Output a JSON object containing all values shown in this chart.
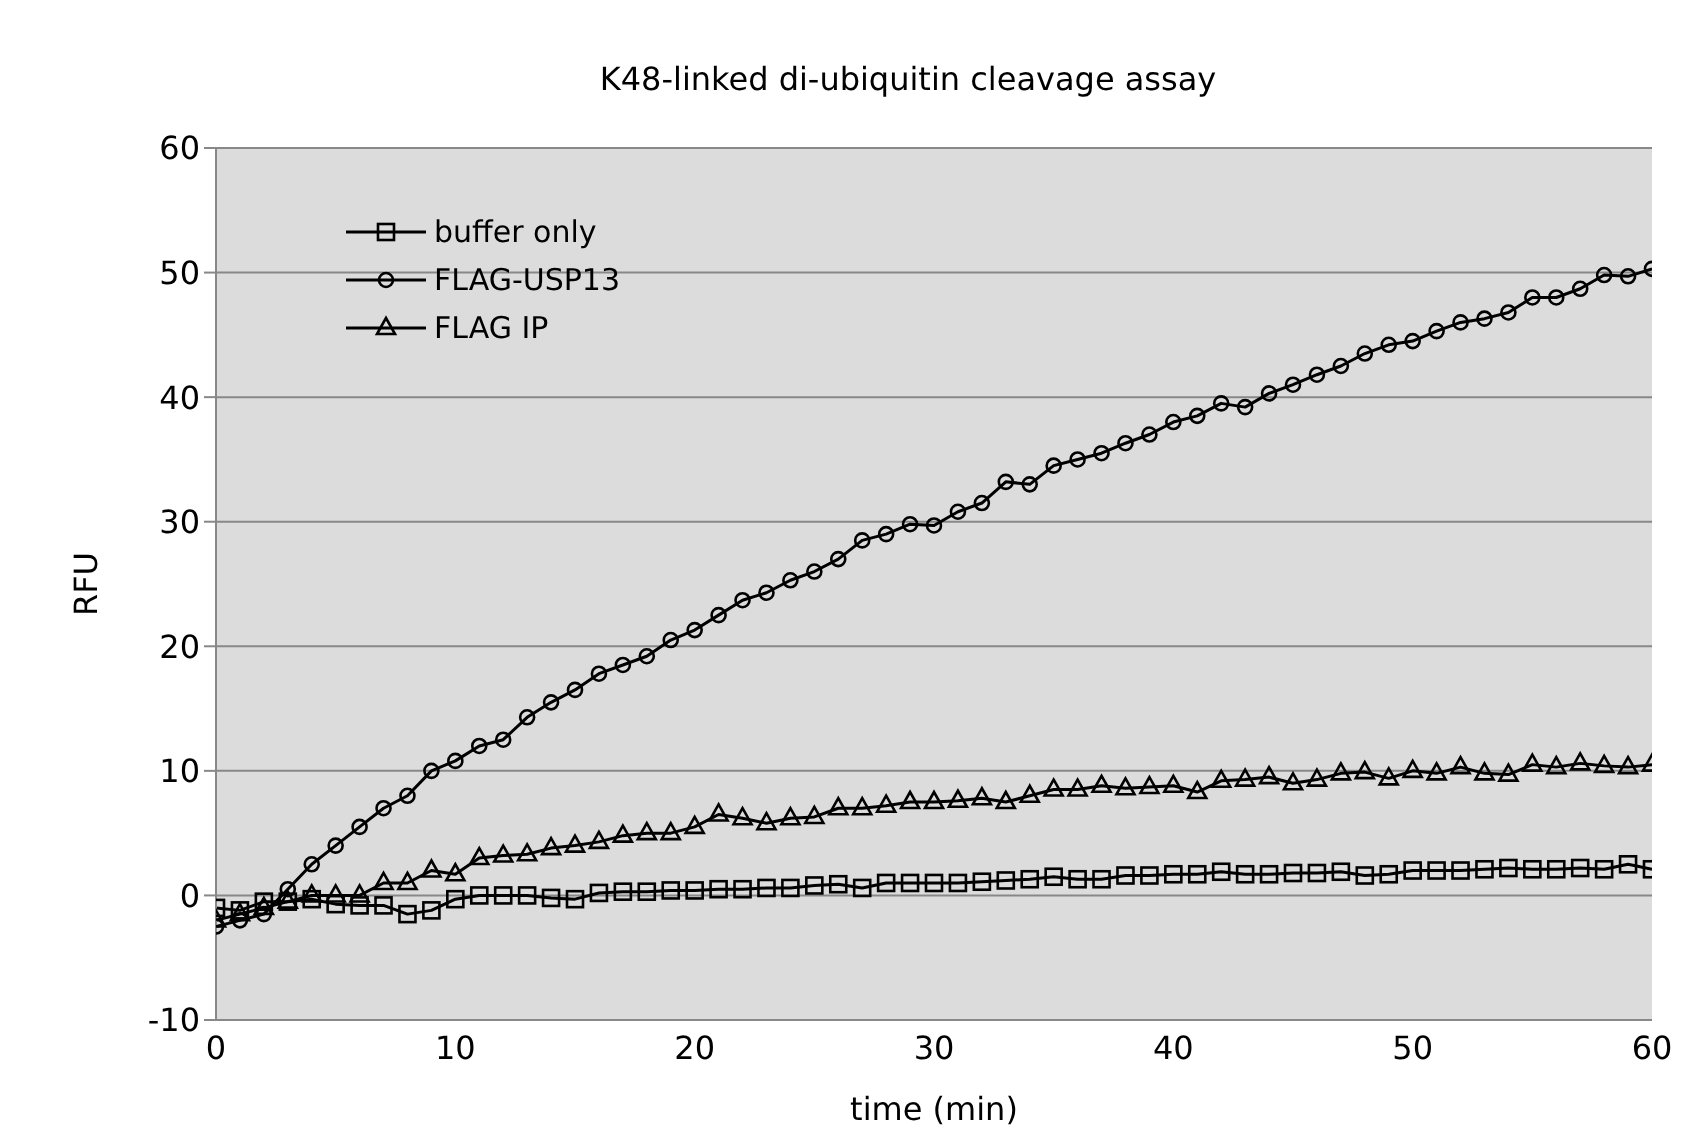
{
  "chart_data": {
    "type": "line",
    "title": "K48-linked di-ubiquitin cleavage assay",
    "xlabel": "time (min)",
    "ylabel": "RFU",
    "x": [
      0,
      1,
      2,
      3,
      4,
      5,
      6,
      7,
      8,
      9,
      10,
      11,
      12,
      13,
      14,
      15,
      16,
      17,
      18,
      19,
      20,
      21,
      22,
      23,
      24,
      25,
      26,
      27,
      28,
      29,
      30,
      31,
      32,
      33,
      34,
      35,
      36,
      37,
      38,
      39,
      40,
      41,
      42,
      43,
      44,
      45,
      46,
      47,
      48,
      49,
      50,
      51,
      52,
      53,
      54,
      55,
      56,
      57,
      58,
      59,
      60
    ],
    "series": [
      {
        "name": "buffer only",
        "color": "#000000",
        "marker": "square",
        "values": [
          -1,
          -1.2,
          -0.5,
          -0.5,
          -0.3,
          -0.7,
          -0.8,
          -0.8,
          -1.5,
          -1.2,
          -0.3,
          0,
          0,
          0,
          -0.2,
          -0.3,
          0.2,
          0.3,
          0.3,
          0.4,
          0.4,
          0.5,
          0.5,
          0.6,
          0.6,
          0.8,
          0.9,
          0.6,
          1,
          1,
          1,
          1,
          1.1,
          1.2,
          1.3,
          1.5,
          1.3,
          1.3,
          1.6,
          1.6,
          1.7,
          1.7,
          1.9,
          1.7,
          1.7,
          1.8,
          1.8,
          1.9,
          1.6,
          1.7,
          2,
          2,
          2,
          2.1,
          2.2,
          2.1,
          2.1,
          2.2,
          2.1,
          2.5,
          2.1
        ]
      },
      {
        "name": "FLAG-USP13",
        "color": "#000000",
        "marker": "circle",
        "values": [
          -2.5,
          -2,
          -1.5,
          0.5,
          2.5,
          4,
          5.5,
          7,
          8,
          10,
          10.8,
          12,
          12.5,
          14.3,
          15.5,
          16.5,
          17.8,
          18.5,
          19.2,
          20.5,
          21.3,
          22.5,
          23.7,
          24.3,
          25.3,
          26,
          27,
          28.5,
          29,
          29.8,
          29.7,
          30.8,
          31.5,
          33.2,
          33,
          34.5,
          35,
          35.5,
          36.3,
          37,
          38,
          38.5,
          39.5,
          39.2,
          40.3,
          41,
          41.8,
          42.5,
          43.5,
          44.2,
          44.5,
          45.3,
          46,
          46.3,
          46.8,
          48,
          48,
          48.7,
          49.8,
          49.7,
          50.3
        ]
      },
      {
        "name": "FLAG IP",
        "color": "#000000",
        "marker": "triangle",
        "values": [
          -2,
          -1.5,
          -1,
          -0.5,
          0,
          0,
          0,
          1,
          1,
          2,
          1.7,
          3,
          3.2,
          3.3,
          3.8,
          4,
          4.3,
          4.8,
          5,
          5,
          5.5,
          6.5,
          6.2,
          5.8,
          6.2,
          6.3,
          7,
          7,
          7.2,
          7.5,
          7.5,
          7.6,
          7.8,
          7.5,
          8,
          8.5,
          8.5,
          8.8,
          8.6,
          8.7,
          8.8,
          8.3,
          9.2,
          9.3,
          9.5,
          9,
          9.3,
          9.8,
          9.9,
          9.4,
          10,
          9.8,
          10.3,
          9.8,
          9.7,
          10.5,
          10.3,
          10.6,
          10.4,
          10.3,
          10.5
        ]
      }
    ],
    "xlim": [
      0,
      60
    ],
    "xticks": [
      0,
      10,
      20,
      30,
      40,
      50,
      60
    ],
    "ylim": [
      -10,
      60
    ],
    "yticks": [
      -10,
      0,
      10,
      20,
      30,
      40,
      50,
      60
    ],
    "grid": "y",
    "legend": "top left",
    "line_style": "solid"
  }
}
